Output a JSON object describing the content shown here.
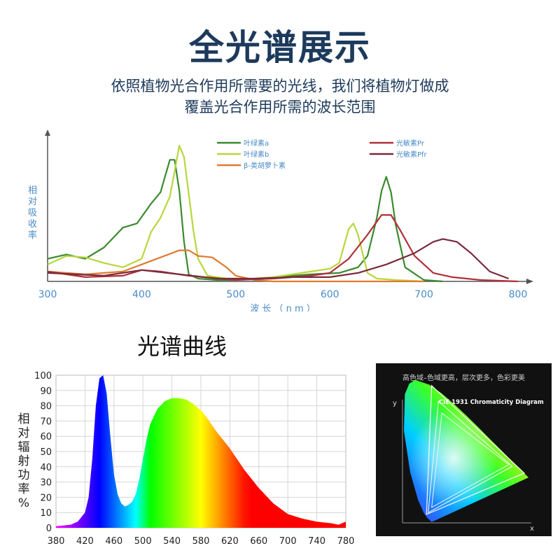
{
  "header": {
    "title": "全光谱展示",
    "subtitle_line1": "依照植物光合作用所需要的光线，我们将植物灯做成",
    "subtitle_line2": "覆盖光合作用所需的波长范围"
  },
  "section_title": "光谱曲线",
  "cie": {
    "caption": "高色域–色域更高，层次更多，色彩更美",
    "title": "CIE 1931 Chromaticity Diagram",
    "xlabel": "x",
    "ylabel": "y"
  },
  "chart_data": [
    {
      "type": "line",
      "title": "",
      "xlabel": "波 长 （ n m ）",
      "ylabel": "相对吸收率",
      "xlim": [
        300,
        800
      ],
      "ylim": [
        0,
        1
      ],
      "x_ticks": [
        "300",
        "400",
        "500",
        "600",
        "700",
        "800"
      ],
      "legend_position": "top",
      "series": [
        {
          "name": "叶绿素a",
          "color": "#3a8a2e",
          "x": [
            300,
            320,
            340,
            360,
            380,
            395,
            410,
            420,
            430,
            435,
            440,
            445,
            450,
            460,
            480,
            500,
            540,
            580,
            610,
            630,
            640,
            650,
            655,
            660,
            665,
            670,
            680,
            700,
            720
          ],
          "y": [
            0.16,
            0.19,
            0.16,
            0.24,
            0.38,
            0.41,
            0.55,
            0.63,
            0.86,
            0.86,
            0.64,
            0.28,
            0.05,
            0.02,
            0.01,
            0.01,
            0.03,
            0.05,
            0.06,
            0.1,
            0.18,
            0.45,
            0.64,
            0.74,
            0.63,
            0.4,
            0.1,
            0.01,
            0.0
          ]
        },
        {
          "name": "叶绿素b",
          "color": "#b8d63c",
          "x": [
            300,
            320,
            340,
            360,
            380,
            400,
            410,
            420,
            430,
            440,
            445,
            450,
            455,
            460,
            470,
            500,
            540,
            580,
            600,
            610,
            620,
            625,
            630,
            640,
            650,
            670,
            700
          ],
          "y": [
            0.12,
            0.18,
            0.17,
            0.13,
            0.1,
            0.16,
            0.35,
            0.45,
            0.6,
            0.96,
            0.88,
            0.62,
            0.36,
            0.16,
            0.04,
            0.01,
            0.03,
            0.07,
            0.09,
            0.13,
            0.37,
            0.41,
            0.33,
            0.06,
            0.02,
            0.01,
            0.0
          ]
        },
        {
          "name": "β-类胡萝卜素",
          "color": "#e07a30",
          "x": [
            300,
            340,
            380,
            400,
            420,
            440,
            450,
            460,
            475,
            490,
            500,
            520,
            540,
            580,
            620,
            700
          ],
          "y": [
            0.07,
            0.05,
            0.07,
            0.12,
            0.17,
            0.22,
            0.22,
            0.18,
            0.17,
            0.1,
            0.04,
            0.01,
            0.0,
            0.0,
            0.0,
            0.0
          ]
        },
        {
          "name": "光敏素Pr",
          "color": "#b0303a",
          "x": [
            300,
            340,
            380,
            400,
            420,
            450,
            500,
            540,
            580,
            600,
            620,
            640,
            655,
            665,
            675,
            690,
            710,
            730,
            760,
            800
          ],
          "y": [
            0.07,
            0.03,
            0.04,
            0.08,
            0.07,
            0.04,
            0.01,
            0.02,
            0.04,
            0.06,
            0.16,
            0.33,
            0.47,
            0.47,
            0.36,
            0.18,
            0.06,
            0.03,
            0.01,
            0.0
          ]
        },
        {
          "name": "光敏素Pfr",
          "color": "#7a2a3a",
          "x": [
            300,
            330,
            360,
            400,
            440,
            480,
            520,
            560,
            600,
            630,
            660,
            690,
            710,
            720,
            735,
            750,
            770,
            790
          ],
          "y": [
            0.06,
            0.05,
            0.04,
            0.08,
            0.05,
            0.02,
            0.02,
            0.03,
            0.03,
            0.06,
            0.12,
            0.2,
            0.28,
            0.3,
            0.28,
            0.2,
            0.07,
            0.02
          ]
        }
      ]
    },
    {
      "type": "area",
      "title": "",
      "xlabel": "",
      "ylabel": "相对辐射功率%",
      "xlim": [
        380,
        780
      ],
      "ylim": [
        0,
        100
      ],
      "x_ticks": [
        380,
        420,
        460,
        500,
        540,
        580,
        620,
        660,
        700,
        740,
        780
      ],
      "y_ticks": [
        0,
        10,
        20,
        30,
        40,
        50,
        60,
        70,
        80,
        90,
        100
      ],
      "grid": true,
      "fill": "visible-spectrum-colors",
      "series": [
        {
          "x": [
            380,
            400,
            410,
            420,
            425,
            430,
            435,
            440,
            445,
            450,
            455,
            460,
            465,
            470,
            475,
            480,
            485,
            490,
            495,
            500,
            505,
            510,
            520,
            530,
            540,
            550,
            560,
            570,
            580,
            590,
            600,
            620,
            640,
            660,
            680,
            700,
            720,
            740,
            760,
            770,
            780
          ],
          "y": [
            1,
            2,
            4,
            10,
            20,
            45,
            80,
            98,
            100,
            88,
            60,
            35,
            22,
            16,
            14,
            15,
            17,
            22,
            32,
            45,
            58,
            68,
            78,
            83,
            85,
            85,
            84,
            81,
            77,
            71,
            64,
            52,
            38,
            26,
            16,
            9,
            6,
            4,
            3,
            2,
            4
          ]
        }
      ]
    }
  ]
}
